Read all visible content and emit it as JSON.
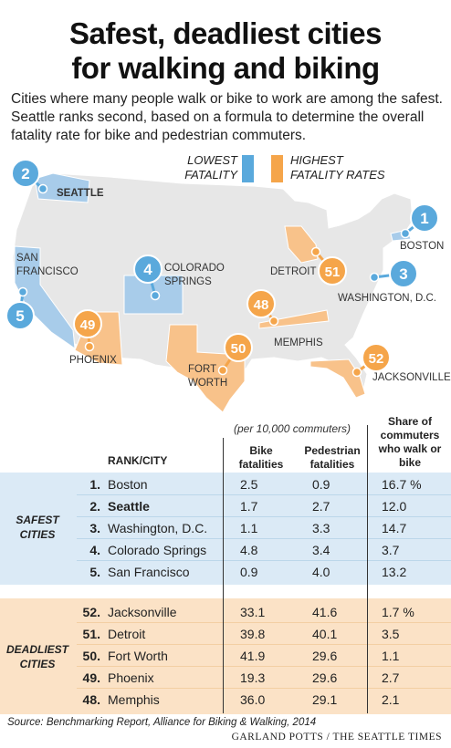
{
  "title_line1": "Safest, deadliest cities",
  "title_line2": "for walking and biking",
  "subtitle": "Cities where many people walk or bike to work are among the safest. Seattle ranks second, based on a formula to determine the overall fatality rate for bike and pedestrian commuters.",
  "legend": {
    "lowest_line1": "LOWEST",
    "lowest_line2": "FATALITY RATES",
    "highest_line1": "HIGHEST",
    "highest_line2": "FATALITY RATES",
    "lowest_color": "#5aa9dc",
    "highest_color": "#f5a54a"
  },
  "map": {
    "markers": [
      {
        "rank": "2",
        "label": "SEATTLE",
        "group": "safest"
      },
      {
        "rank": "1",
        "label": "BOSTON",
        "group": "safest"
      },
      {
        "rank": "4",
        "label": "COLORADO SPRINGS",
        "group": "safest"
      },
      {
        "rank": "5",
        "label": "SAN FRANCISCO",
        "group": "safest"
      },
      {
        "rank": "3",
        "label": "WASHINGTON, D.C.",
        "group": "safest"
      },
      {
        "rank": "49",
        "label": "PHOENIX",
        "group": "deadliest"
      },
      {
        "rank": "50",
        "label": "FORT WORTH",
        "group": "deadliest"
      },
      {
        "rank": "48",
        "label": "MEMPHIS",
        "group": "deadliest"
      },
      {
        "rank": "51",
        "label": "DETROIT",
        "group": "deadliest"
      },
      {
        "rank": "52",
        "label": "JACKSONVILLE",
        "group": "deadliest"
      }
    ]
  },
  "chart_data": {
    "type": "table",
    "units_note": "(per 10,000 commuters)",
    "rank_header": "RANK/CITY",
    "columns": [
      "Bike fatalities",
      "Pedestrian fatalities",
      "Share of commuters who walk or bike"
    ],
    "groups": [
      {
        "name": "SAFEST CITIES",
        "rows": [
          {
            "rank": "1.",
            "city": "Boston",
            "bike": "2.5",
            "ped": "0.9",
            "share": "16.7 %",
            "bold": false
          },
          {
            "rank": "2.",
            "city": "Seattle",
            "bike": "1.7",
            "ped": "2.7",
            "share": "12.0",
            "bold": true
          },
          {
            "rank": "3.",
            "city": "Washington, D.C.",
            "bike": "1.1",
            "ped": "3.3",
            "share": "14.7",
            "bold": false
          },
          {
            "rank": "4.",
            "city": "Colorado Springs",
            "bike": "4.8",
            "ped": "3.4",
            "share": "3.7",
            "bold": false
          },
          {
            "rank": "5.",
            "city": "San Francisco",
            "bike": "0.9",
            "ped": "4.0",
            "share": "13.2",
            "bold": false
          }
        ]
      },
      {
        "name": "DEADLIEST CITIES",
        "rows": [
          {
            "rank": "52.",
            "city": "Jacksonville",
            "bike": "33.1",
            "ped": "41.6",
            "share": "1.7 %",
            "bold": false
          },
          {
            "rank": "51.",
            "city": "Detroit",
            "bike": "39.8",
            "ped": "40.1",
            "share": "3.5",
            "bold": false
          },
          {
            "rank": "50.",
            "city": "Fort Worth",
            "bike": "41.9",
            "ped": "29.6",
            "share": "1.1",
            "bold": false
          },
          {
            "rank": "49.",
            "city": "Phoenix",
            "bike": "19.3",
            "ped": "29.6",
            "share": "2.7",
            "bold": false
          },
          {
            "rank": "48.",
            "city": "Memphis",
            "bike": "36.0",
            "ped": "29.1",
            "share": "2.1",
            "bold": false
          }
        ]
      }
    ]
  },
  "labels": {
    "bike_l1": "Bike",
    "bike_l2": "fatalities",
    "ped_l1": "Pedestrian",
    "ped_l2": "fatalities",
    "share_l1": "Share of",
    "share_l2": "commuters",
    "share_l3": "who walk or",
    "share_l4": "bike",
    "safest_l1": "SAFEST",
    "safest_l2": "CITIES",
    "deadliest_l1": "DEADLIEST",
    "deadliest_l2": "CITIES"
  },
  "source": "Source:  Benchmarking Report, Alliance for Biking & Walking, 2014",
  "credit": "GARLAND POTTS / THE SEATTLE TIMES"
}
